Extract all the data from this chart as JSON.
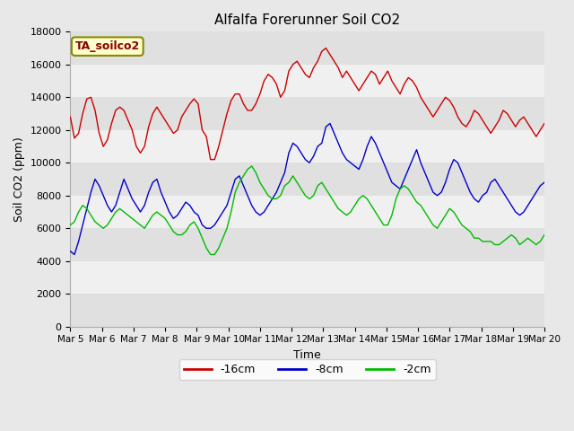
{
  "title": "Alfalfa Forerunner Soil CO2",
  "xlabel": "Time",
  "ylabel": "Soil CO2 (ppm)",
  "sensor_label": "TA_soilco2",
  "ylim": [
    0,
    18000
  ],
  "yticks": [
    0,
    2000,
    4000,
    6000,
    8000,
    10000,
    12000,
    14000,
    16000,
    18000
  ],
  "xtick_labels": [
    "Mar 5",
    "Mar 6",
    "Mar 7",
    "Mar 8",
    "Mar 9",
    "Mar 10",
    "Mar 11",
    "Mar 12",
    "Mar 13",
    "Mar 14",
    "Mar 15",
    "Mar 16",
    "Mar 17",
    "Mar 18",
    "Mar 19",
    "Mar 20"
  ],
  "line_colors": {
    "16cm": "#cc0000",
    "8cm": "#0000cc",
    "2cm": "#00bb00"
  },
  "legend": [
    {
      "label": "-16cm",
      "color": "#cc0000"
    },
    {
      "label": "-8cm",
      "color": "#0000cc"
    },
    {
      "label": "-2cm",
      "color": "#00bb00"
    }
  ],
  "fig_bg": "#e8e8e8",
  "plot_bg": "#ffffff",
  "band_color_dark": "#e0e0e0",
  "band_color_light": "#f0f0f0",
  "linewidth": 1.0,
  "red_y": [
    12800,
    11500,
    11800,
    13000,
    13900,
    14000,
    13200,
    11800,
    11000,
    11400,
    12400,
    13200,
    13400,
    13200,
    12600,
    12000,
    11000,
    10600,
    11000,
    12200,
    13000,
    13400,
    13000,
    12600,
    12200,
    11800,
    12000,
    12800,
    13200,
    13600,
    13900,
    13600,
    12000,
    11600,
    10200,
    10200,
    11000,
    12000,
    13000,
    13800,
    14200,
    14200,
    13600,
    13200,
    13200,
    13600,
    14200,
    15000,
    15400,
    15200,
    14800,
    14000,
    14400,
    15600,
    16000,
    16200,
    15800,
    15400,
    15200,
    15800,
    16200,
    16800,
    17000,
    16600,
    16200,
    15800,
    15200,
    15600,
    15200,
    14800,
    14400,
    14800,
    15200,
    15600,
    15400,
    14800,
    15200,
    15600,
    15000,
    14600,
    14200,
    14800,
    15200,
    15000,
    14600,
    14000,
    13600,
    13200,
    12800,
    13200,
    13600,
    14000,
    13800,
    13400,
    12800,
    12400,
    12200,
    12600,
    13200,
    13000,
    12600,
    12200,
    11800,
    12200,
    12600,
    13200,
    13000,
    12600,
    12200,
    12600,
    12800,
    12400,
    12000,
    11600,
    12000,
    12400
  ],
  "blue_y": [
    4600,
    4400,
    5200,
    6200,
    7200,
    8200,
    9000,
    8600,
    8000,
    7400,
    7000,
    7400,
    8200,
    9000,
    8400,
    7800,
    7400,
    7000,
    7400,
    8200,
    8800,
    9000,
    8200,
    7600,
    7000,
    6600,
    6800,
    7200,
    7600,
    7400,
    7000,
    6800,
    6200,
    6000,
    6000,
    6200,
    6600,
    7000,
    7400,
    8200,
    9000,
    9200,
    8600,
    8000,
    7400,
    7000,
    6800,
    7000,
    7400,
    7800,
    8200,
    8800,
    9400,
    10600,
    11200,
    11000,
    10600,
    10200,
    10000,
    10400,
    11000,
    11200,
    12200,
    12400,
    11800,
    11200,
    10600,
    10200,
    10000,
    9800,
    9600,
    10200,
    11000,
    11600,
    11200,
    10600,
    10000,
    9400,
    8800,
    8600,
    8400,
    9000,
    9600,
    10200,
    10800,
    10000,
    9400,
    8800,
    8200,
    8000,
    8200,
    8800,
    9600,
    10200,
    10000,
    9400,
    8800,
    8200,
    7800,
    7600,
    8000,
    8200,
    8800,
    9000,
    8600,
    8200,
    7800,
    7400,
    7000,
    6800,
    7000,
    7400,
    7800,
    8200,
    8600,
    8800
  ],
  "green_y": [
    6200,
    6400,
    7000,
    7400,
    7200,
    6800,
    6400,
    6200,
    6000,
    6200,
    6600,
    7000,
    7200,
    7000,
    6800,
    6600,
    6400,
    6200,
    6000,
    6400,
    6800,
    7000,
    6800,
    6600,
    6200,
    5800,
    5600,
    5600,
    5800,
    6200,
    6400,
    6000,
    5400,
    4800,
    4400,
    4400,
    4800,
    5400,
    6000,
    7000,
    8200,
    8800,
    9200,
    9600,
    9800,
    9400,
    8800,
    8400,
    8000,
    7800,
    7800,
    8000,
    8600,
    8800,
    9200,
    8800,
    8400,
    8000,
    7800,
    8000,
    8600,
    8800,
    8400,
    8000,
    7600,
    7200,
    7000,
    6800,
    7000,
    7400,
    7800,
    8000,
    7800,
    7400,
    7000,
    6600,
    6200,
    6200,
    6800,
    7800,
    8400,
    8600,
    8400,
    8000,
    7600,
    7400,
    7000,
    6600,
    6200,
    6000,
    6400,
    6800,
    7200,
    7000,
    6600,
    6200,
    6000,
    5800,
    5400,
    5400,
    5200,
    5200,
    5200,
    5000,
    5000,
    5200,
    5400,
    5600,
    5400,
    5000,
    5200,
    5400,
    5200,
    5000,
    5200,
    5600
  ]
}
